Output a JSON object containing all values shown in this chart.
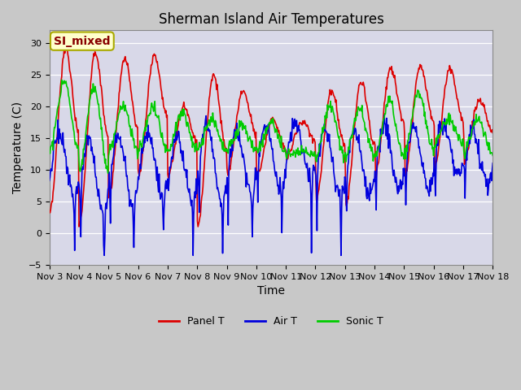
{
  "title": "Sherman Island Air Temperatures",
  "xlabel": "Time",
  "ylabel": "Temperature (C)",
  "ylim": [
    -5,
    32
  ],
  "yticks": [
    -5,
    0,
    5,
    10,
    15,
    20,
    25,
    30
  ],
  "figure_bg": "#c8c8c8",
  "plot_bg": "#d8d8e8",
  "line_colors": {
    "panel": "#dd0000",
    "air": "#0000dd",
    "sonic": "#00cc00"
  },
  "line_widths": {
    "panel": 1.2,
    "air": 1.2,
    "sonic": 1.2
  },
  "legend_labels": [
    "Panel T",
    "Air T",
    "Sonic T"
  ],
  "annotation_text": "SI_mixed",
  "annotation_color": "#880000",
  "annotation_bg": "#ffffcc",
  "days": [
    "Nov 3",
    "Nov 4",
    "Nov 5",
    "Nov 6",
    "Nov 7",
    "Nov 8",
    "Nov 9",
    "Nov 10",
    "Nov 11",
    "Nov 12",
    "Nov 13",
    "Nov 14",
    "Nov 15",
    "Nov 16",
    "Nov 17",
    "Nov 18"
  ],
  "title_fontsize": 12,
  "tick_fontsize": 8,
  "label_fontsize": 10
}
